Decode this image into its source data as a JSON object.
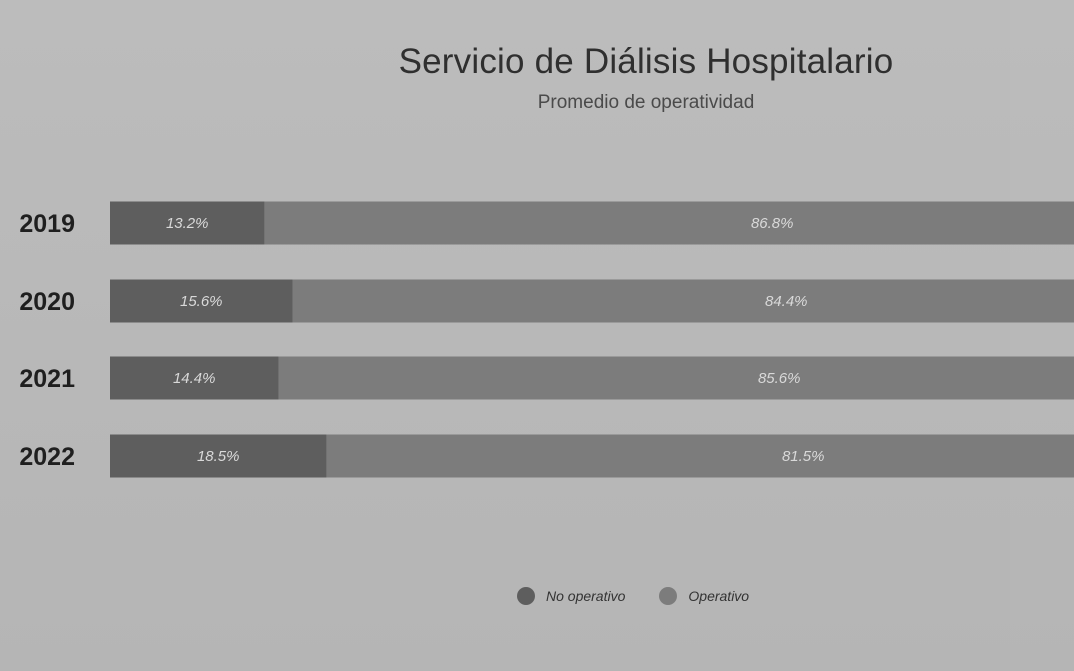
{
  "chart_data": {
    "type": "bar",
    "orientation": "horizontal",
    "stacked": true,
    "title": "Servicio de Diálisis Hospitalario",
    "subtitle": "Promedio de operatividad",
    "categories": [
      "2019",
      "2020",
      "2021",
      "2022"
    ],
    "series": [
      {
        "name": "No operativo",
        "values": [
          13.2,
          15.6,
          14.4,
          18.5
        ],
        "labels": [
          "13.2%",
          "15.6%",
          "14.4%",
          "18.5%"
        ],
        "color": "#5e5e5e"
      },
      {
        "name": "Operativo",
        "values": [
          86.8,
          84.4,
          85.6,
          81.5
        ],
        "labels": [
          "86.8%",
          "84.4%",
          "85.6%",
          "81.5%"
        ],
        "color": "#7c7c7c"
      }
    ],
    "xlim": [
      0,
      100
    ],
    "grid": false,
    "legend_position": "bottom"
  }
}
